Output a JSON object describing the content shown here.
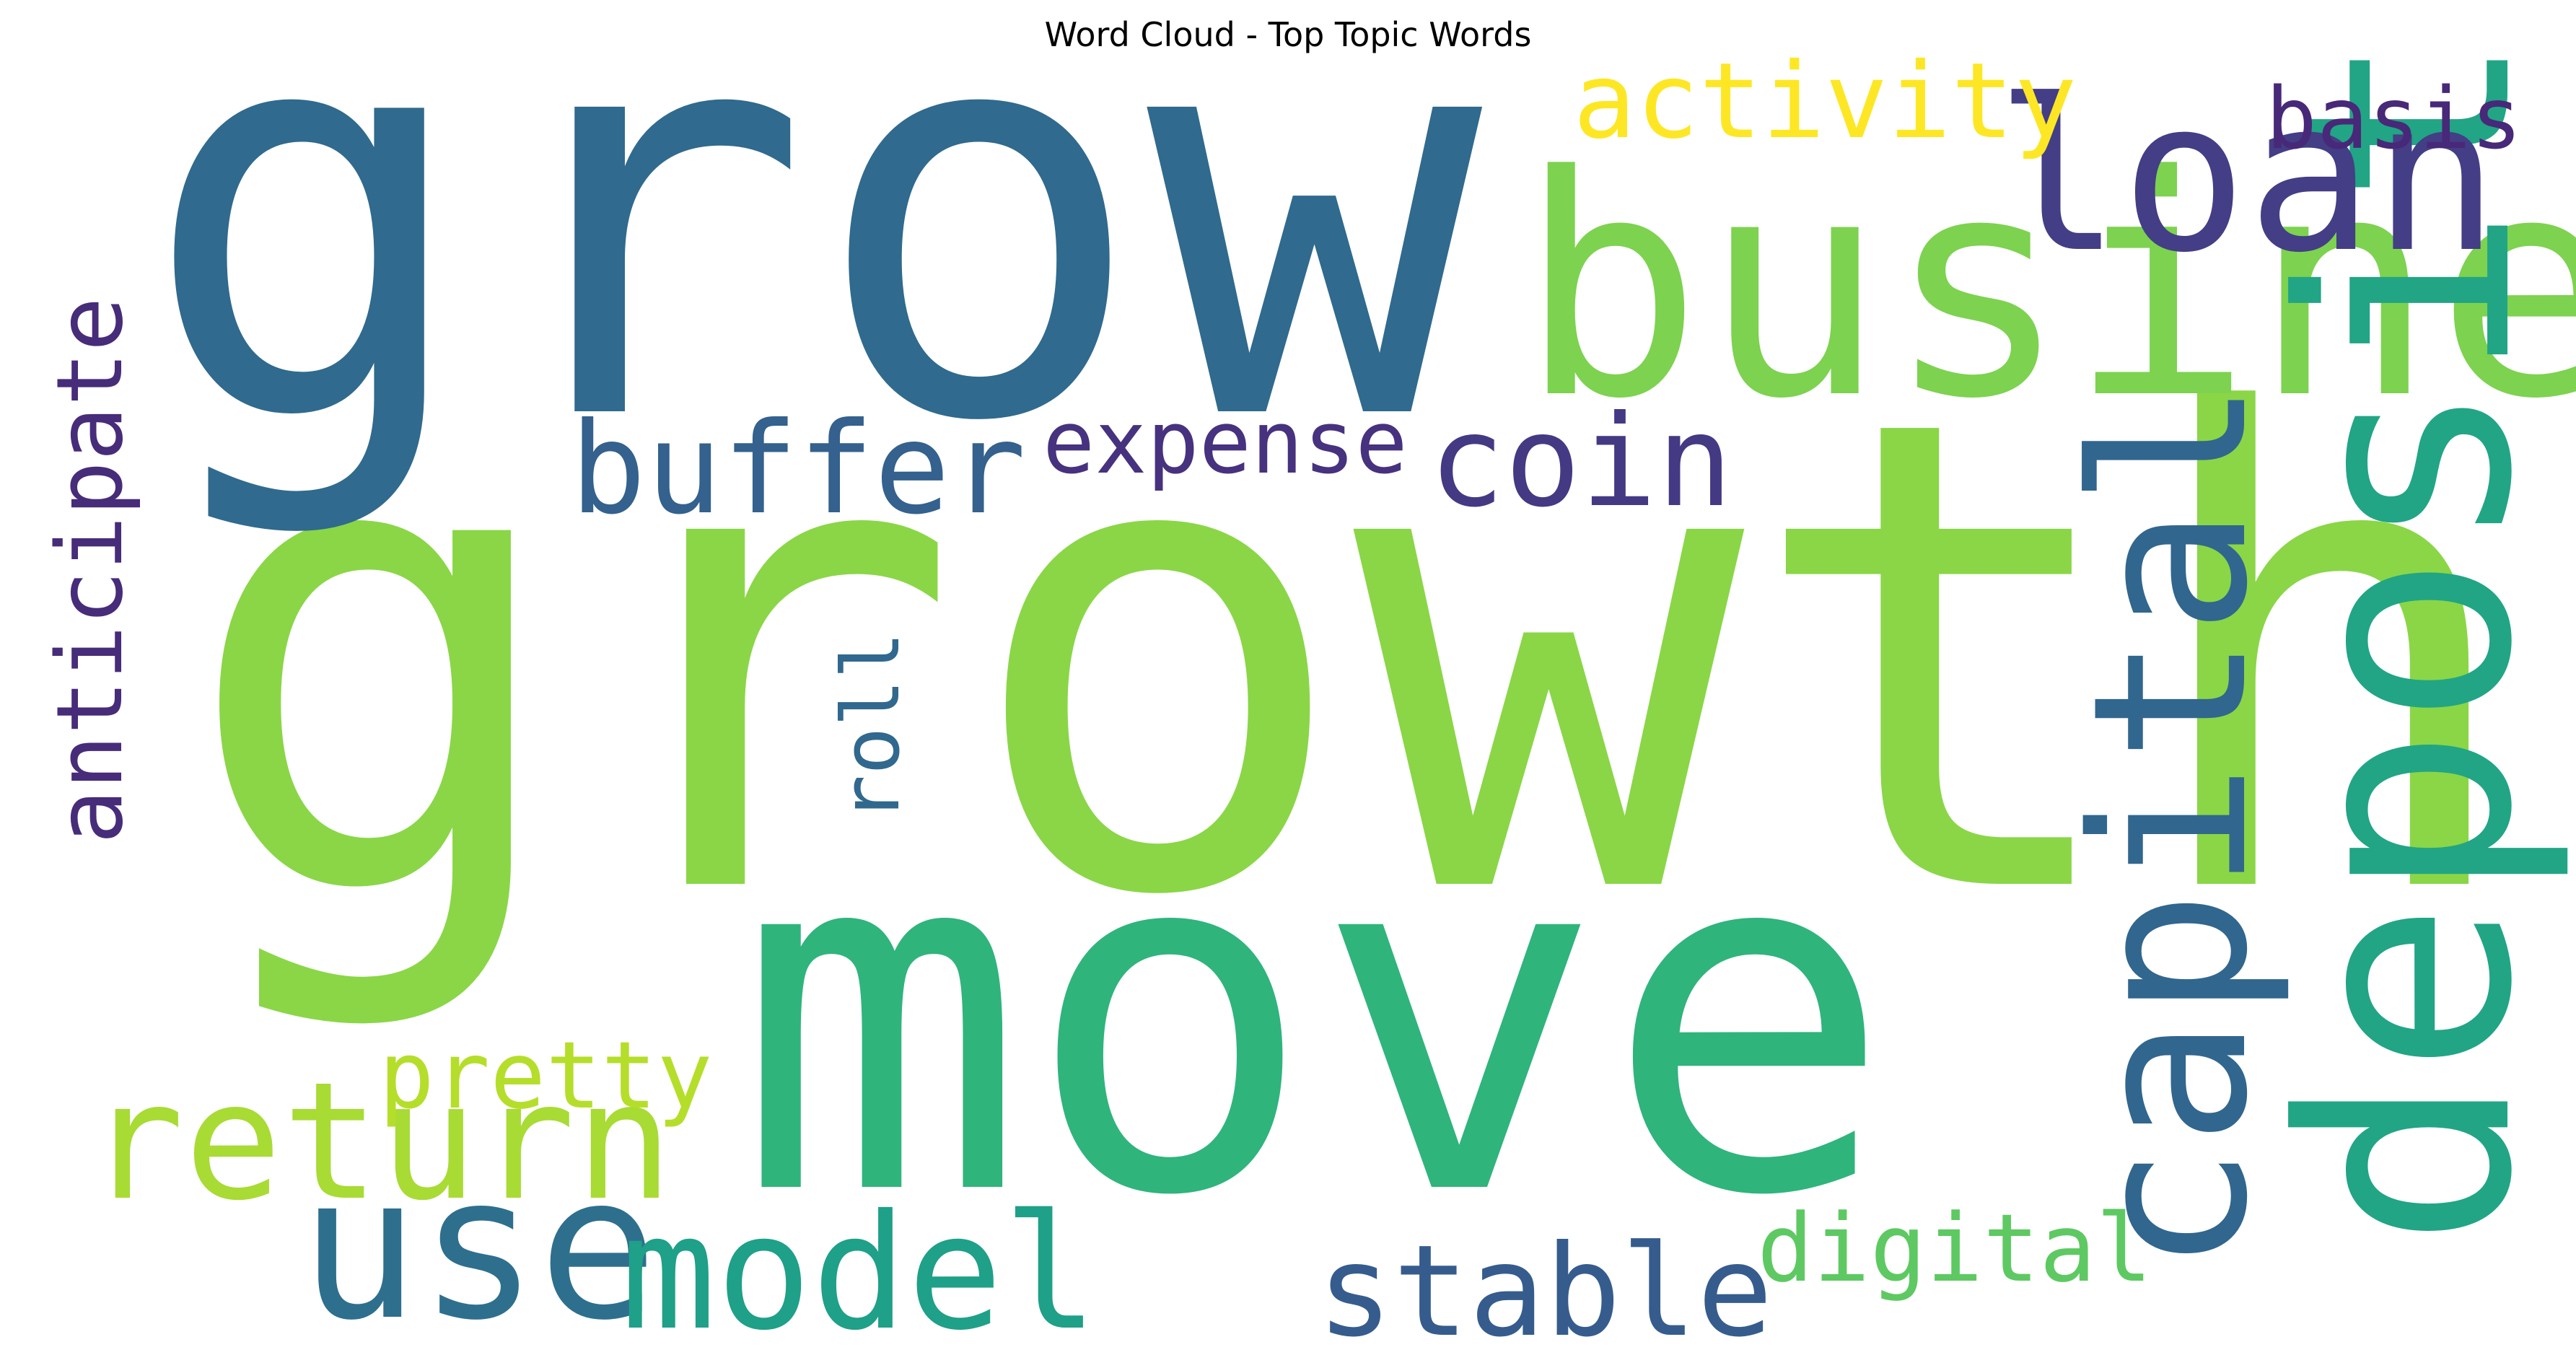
{
  "chart_data": {
    "type": "wordcloud",
    "title": "Word Cloud - Top Topic Words",
    "colormap": "viridis",
    "background": "#ffffff",
    "words": [
      {
        "text": "growth",
        "weight": 1.0,
        "color": "#8ad647",
        "orientation": "horizontal"
      },
      {
        "text": "grow",
        "weight": 0.86,
        "color": "#306a8e",
        "orientation": "horizontal"
      },
      {
        "text": "move",
        "weight": 0.74,
        "color": "#2fb47c",
        "orientation": "horizontal"
      },
      {
        "text": "business",
        "weight": 0.5,
        "color": "#7dd250",
        "orientation": "horizontal"
      },
      {
        "text": "deposit",
        "weight": 0.5,
        "color": "#21a585",
        "orientation": "vertical"
      },
      {
        "text": "loan",
        "weight": 0.36,
        "color": "#433e85",
        "orientation": "horizontal"
      },
      {
        "text": "capital",
        "weight": 0.36,
        "color": "#31668e",
        "orientation": "vertical"
      },
      {
        "text": "use",
        "weight": 0.34,
        "color": "#2e6f8e",
        "orientation": "horizontal"
      },
      {
        "text": "return",
        "weight": 0.3,
        "color": "#a8db34",
        "orientation": "horizontal"
      },
      {
        "text": "model",
        "weight": 0.28,
        "color": "#1fa088",
        "orientation": "horizontal"
      },
      {
        "text": "buffer",
        "weight": 0.24,
        "color": "#34618d",
        "orientation": "horizontal"
      },
      {
        "text": "coin",
        "weight": 0.24,
        "color": "#443983",
        "orientation": "horizontal"
      },
      {
        "text": "stable",
        "weight": 0.24,
        "color": "#365c8d",
        "orientation": "horizontal"
      },
      {
        "text": "anticipate",
        "weight": 0.2,
        "color": "#472c7a",
        "orientation": "vertical"
      },
      {
        "text": "activity",
        "weight": 0.2,
        "color": "#fde725",
        "orientation": "horizontal"
      },
      {
        "text": "digital",
        "weight": 0.19,
        "color": "#5ec962",
        "orientation": "horizontal"
      },
      {
        "text": "pretty",
        "weight": 0.19,
        "color": "#b5de2b",
        "orientation": "horizontal"
      },
      {
        "text": "basis",
        "weight": 0.18,
        "color": "#482878",
        "orientation": "horizontal"
      },
      {
        "text": "expense",
        "weight": 0.18,
        "color": "#46327e",
        "orientation": "horizontal"
      },
      {
        "text": "roll",
        "weight": 0.15,
        "color": "#31688e",
        "orientation": "vertical"
      }
    ]
  }
}
